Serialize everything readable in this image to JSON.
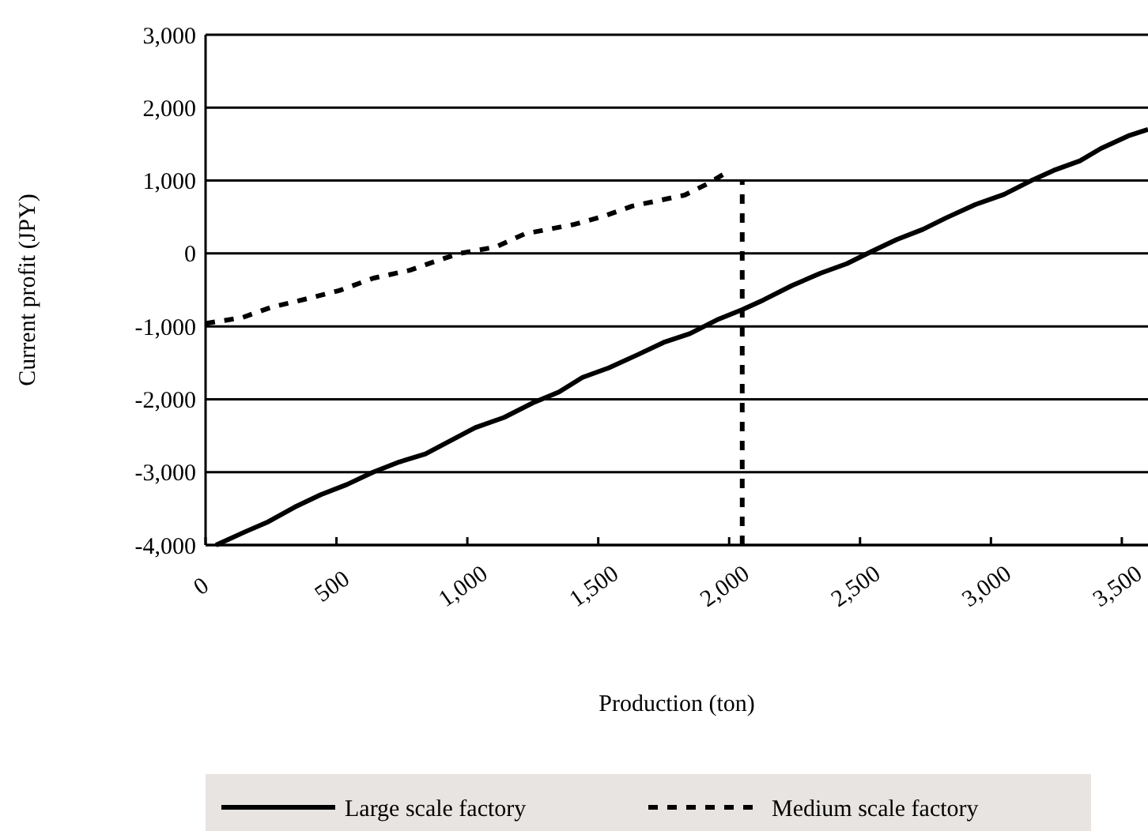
{
  "chart_data": {
    "type": "line",
    "xlabel": "Production (ton)",
    "ylabel": "Current profit (JPY)",
    "xlim": [
      0,
      3600
    ],
    "xticks": [
      {
        "value": 0,
        "label": "0"
      },
      {
        "value": 500,
        "label": "500"
      },
      {
        "value": 1000,
        "label": "1,000"
      },
      {
        "value": 1500,
        "label": "1,500"
      },
      {
        "value": 2000,
        "label": "2,000"
      },
      {
        "value": 2500,
        "label": "2,500"
      },
      {
        "value": 3000,
        "label": "3,000"
      },
      {
        "value": 3500,
        "label": "3,500"
      }
    ],
    "ylim": [
      -4000,
      3000
    ],
    "yticks": [
      {
        "value": -4000,
        "label": "-4,000"
      },
      {
        "value": -3000,
        "label": "-3,000"
      },
      {
        "value": -2000,
        "label": "-2,000"
      },
      {
        "value": -1000,
        "label": "-1,000"
      },
      {
        "value": 0,
        "label": "0"
      },
      {
        "value": 1000,
        "label": "1,000"
      },
      {
        "value": 2000,
        "label": "2,000"
      },
      {
        "value": 3000,
        "label": "3,000"
      }
    ],
    "grid": "y",
    "legend": "bottom",
    "marker": "none",
    "series": [
      {
        "name": "Large scale factory",
        "color": "#000000",
        "line_style": "solid",
        "x": [
          40,
          150,
          240,
          340,
          440,
          540,
          640,
          740,
          840,
          930,
          1030,
          1140,
          1250,
          1350,
          1440,
          1540,
          1650,
          1750,
          1850,
          1960,
          2050,
          2130,
          2240,
          2350,
          2450,
          2540,
          2640,
          2740,
          2830,
          2940,
          3050,
          3160,
          3240,
          3340,
          3420,
          3530,
          3600
        ],
        "values": [
          -4000,
          -3820,
          -3680,
          -3480,
          -3310,
          -3170,
          -3000,
          -2860,
          -2750,
          -2580,
          -2390,
          -2250,
          -2050,
          -1900,
          -1700,
          -1570,
          -1390,
          -1220,
          -1100,
          -900,
          -770,
          -640,
          -440,
          -270,
          -140,
          20,
          190,
          330,
          490,
          670,
          810,
          1010,
          1140,
          1270,
          1440,
          1620,
          1700
        ]
      },
      {
        "name": "Medium scale factory",
        "color": "#000000",
        "line_style": "dashed",
        "x": [
          0,
          140,
          250,
          400,
          510,
          640,
          780,
          860,
          970,
          1110,
          1220,
          1410,
          1520,
          1630,
          1830,
          1920,
          1980
        ],
        "values": [
          -960,
          -880,
          -740,
          -610,
          -510,
          -340,
          -230,
          -130,
          0,
          90,
          270,
          400,
          510,
          650,
          800,
          960,
          1090
        ]
      },
      {
        "color": "#000000",
        "line_style": "dashed",
        "x": [
          2050,
          2050
        ],
        "values": [
          -4000,
          1000
        ]
      }
    ]
  }
}
